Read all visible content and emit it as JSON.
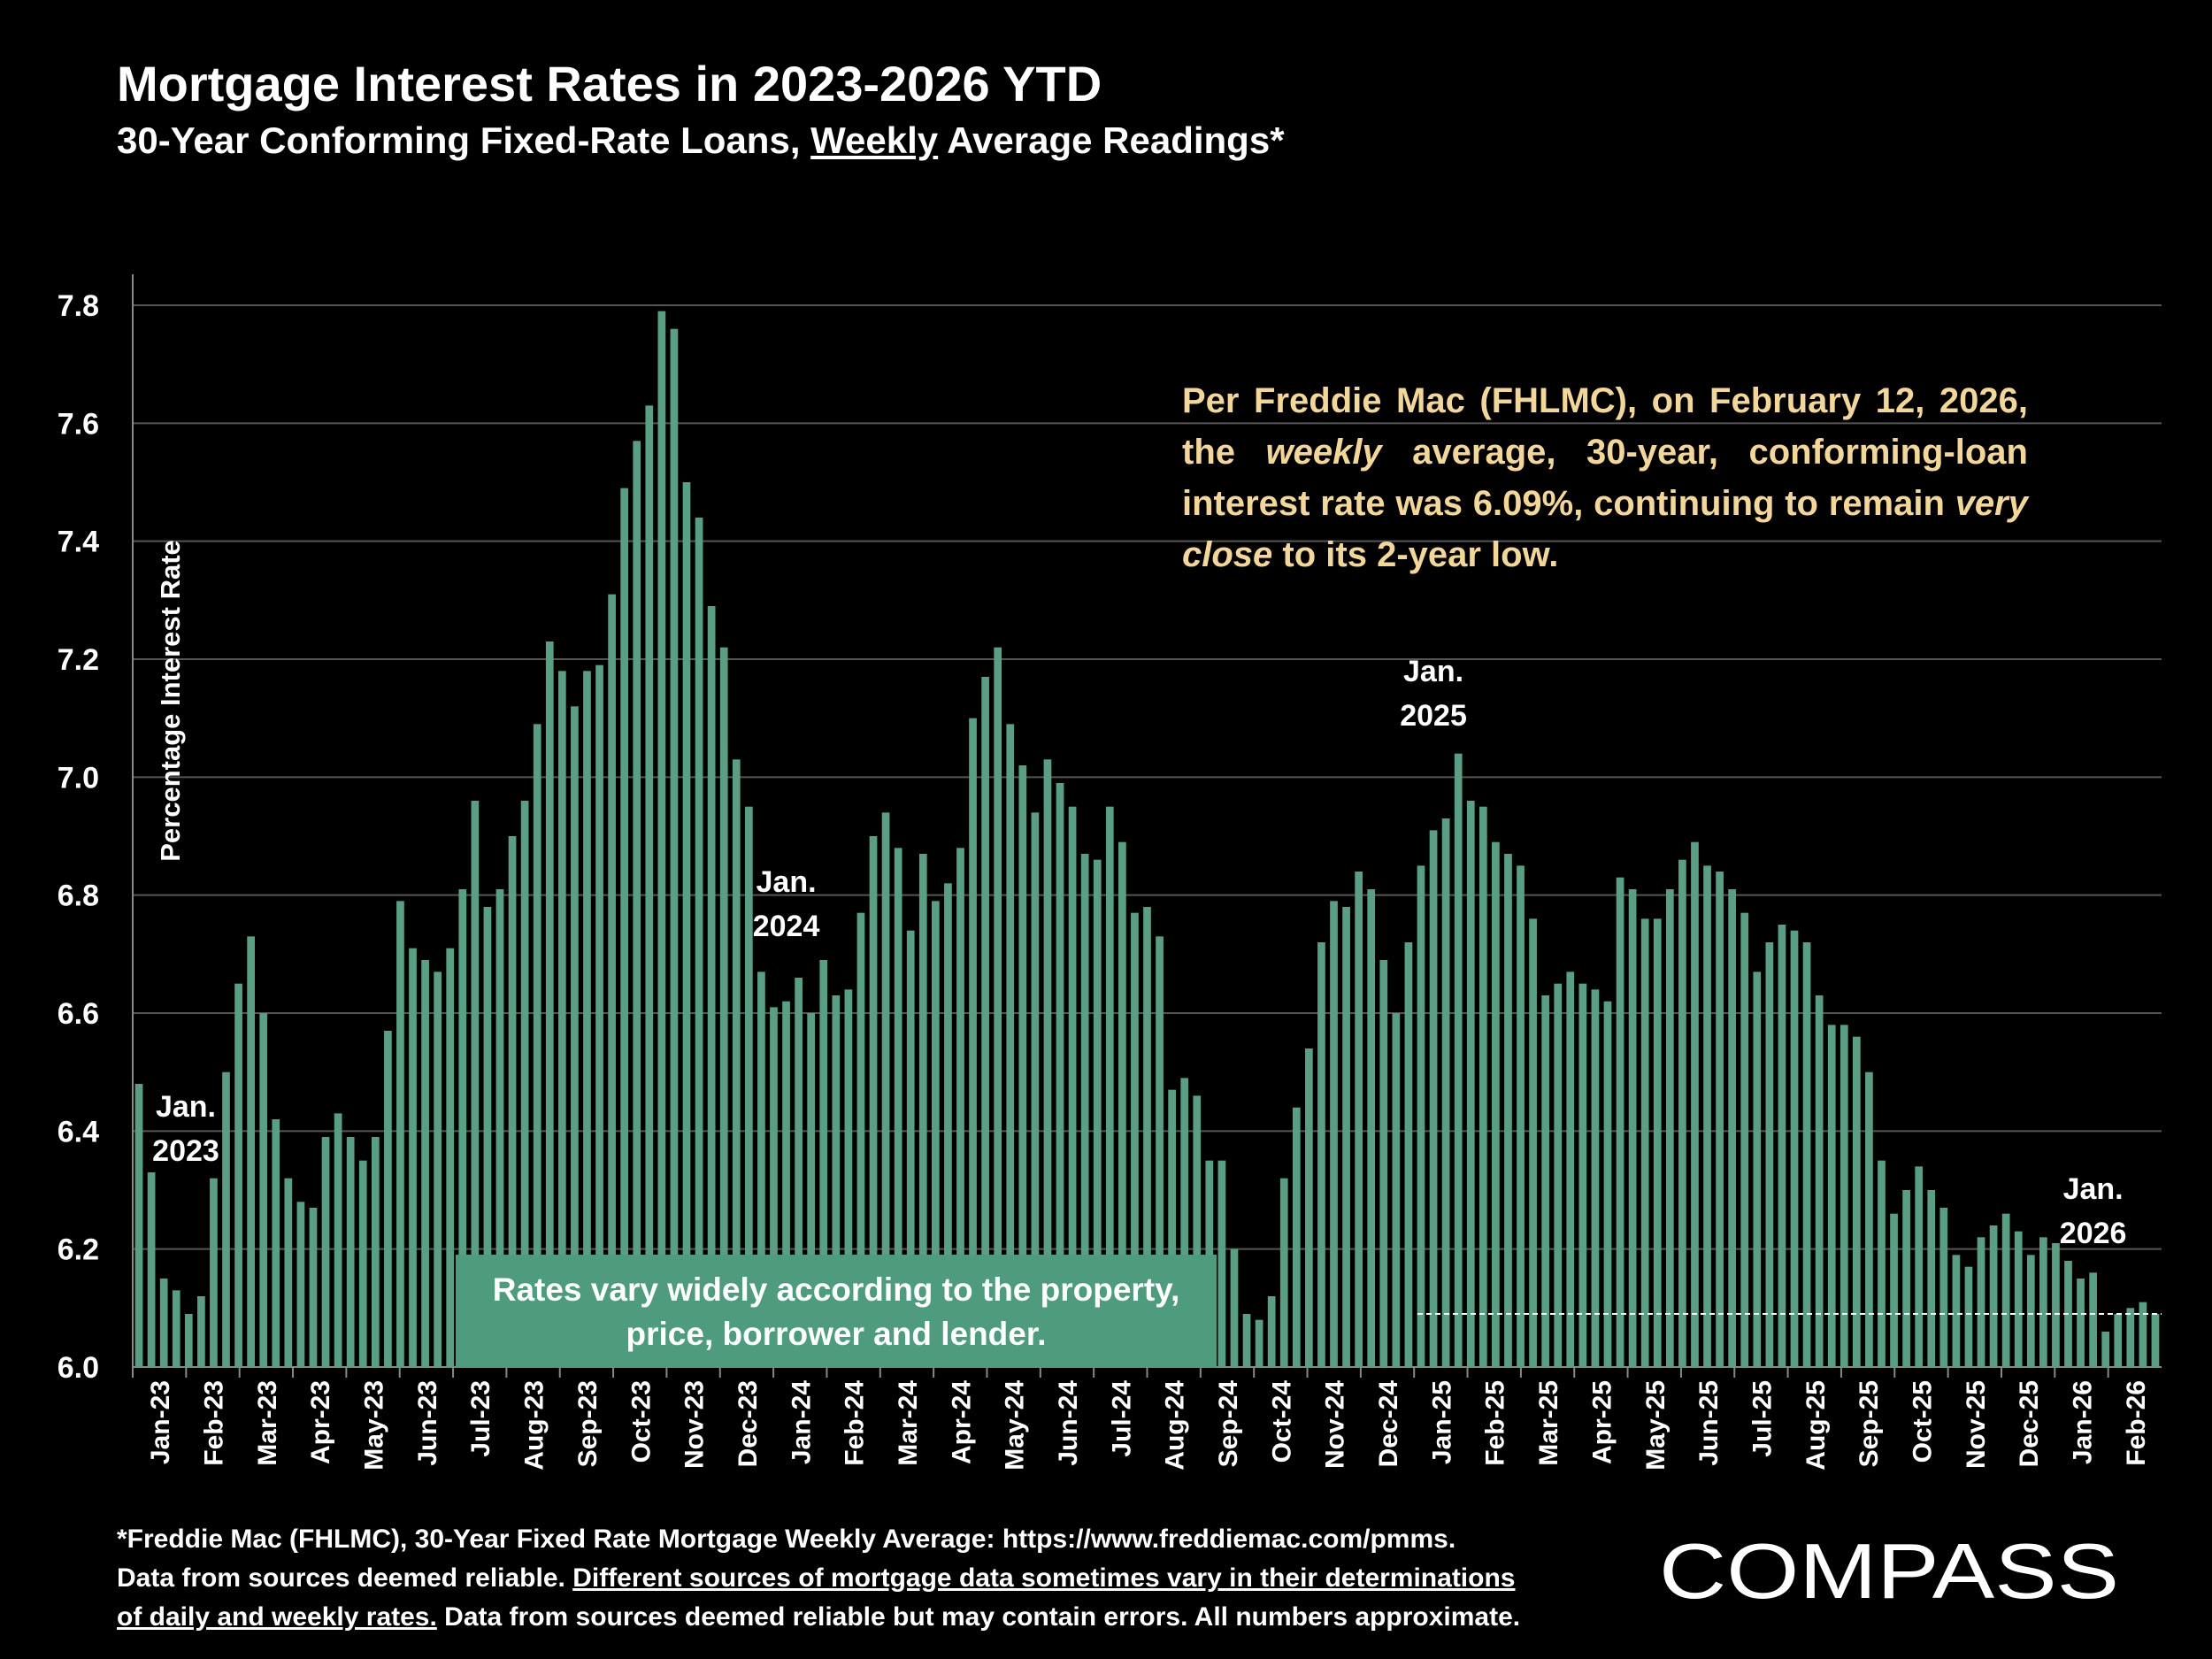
{
  "title": "Mortgage Interest Rates in 2023-2026 YTD",
  "subtitle": {
    "prefix": "30-Year Conforming Fixed-Rate Loans, ",
    "underlined": "Weekly",
    "suffix": " Average Readings*"
  },
  "callout": {
    "t1": "Per Freddie Mac (FHLMC), on February 12, 2026, the ",
    "em1": "weekly",
    "t2": " average, 30-year, conforming-loan interest rate was 6.09%, continuing to remain ",
    "em2": "very close",
    "t3": " to its 2-year low."
  },
  "note_box": {
    "line1": "Rates vary widely according to the property,",
    "line2": "price, borrower and lender."
  },
  "year_markers": [
    {
      "line1": "Jan.",
      "line2": "2023",
      "week": 3
    },
    {
      "line1": "Jan.",
      "line2": "2024",
      "week": 52
    },
    {
      "line1": "Jan.",
      "line2": "2025",
      "week": 104
    },
    {
      "line1": "Jan.",
      "line2": "2026",
      "week": 157
    }
  ],
  "footnote": {
    "line1": "*Freddie Mac (FHLMC), 30-Year Fixed Rate Mortgage Weekly Average:  https://www.freddiemac.com/pmms.",
    "l2a": "Data from sources deemed reliable. ",
    "l2b": "Different sources of mortgage data sometimes vary in their determinations",
    "l3a": "of daily and weekly rates.",
    "l3b": " Data from sources deemed reliable but may contain errors. All numbers approximate."
  },
  "logo": {
    "text": "COMPASS"
  },
  "colors": {
    "bar": "#5a9e83",
    "callout_text": "#f3d79a",
    "note_box": "#4f9b7e",
    "grid": "#555555",
    "background": "#000000"
  },
  "chart_data": {
    "type": "bar",
    "ylabel": "Percentage Interest  Rate",
    "ylim": [
      6.0,
      7.85
    ],
    "yticks": [
      "6.0",
      "6.2",
      "6.4",
      "6.6",
      "6.8",
      "7.0",
      "7.2",
      "7.4",
      "7.6",
      "7.8"
    ],
    "grid": true,
    "reference_line": {
      "value": 6.09,
      "style": "dashed",
      "color": "#ffffff"
    },
    "month_labels": [
      "Jan-23",
      "Feb-23",
      "Mar-23",
      "Apr-23",
      "May-23",
      "Jun-23",
      "Jul-23",
      "Aug-23",
      "Sep-23",
      "Oct-23",
      "Nov-23",
      "Dec-23",
      "Jan-24",
      "Feb-24",
      "Mar-24",
      "Apr-24",
      "May-24",
      "Jun-24",
      "Jul-24",
      "Aug-24",
      "Sep-24",
      "Oct-24",
      "Nov-24",
      "Dec-24",
      "Jan-25",
      "Feb-25",
      "Mar-25",
      "Apr-25",
      "May-25",
      "Jun-25",
      "Jul-25",
      "Aug-25",
      "Sep-25",
      "Oct-25",
      "Nov-25",
      "Dec-25",
      "Jan-26",
      "Feb-26"
    ],
    "values": [
      6.48,
      6.33,
      6.15,
      6.13,
      6.09,
      6.12,
      6.32,
      6.5,
      6.65,
      6.73,
      6.6,
      6.42,
      6.32,
      6.28,
      6.27,
      6.39,
      6.43,
      6.39,
      6.35,
      6.39,
      6.57,
      6.79,
      6.71,
      6.69,
      6.67,
      6.71,
      6.81,
      6.96,
      6.78,
      6.81,
      6.9,
      6.96,
      7.09,
      7.23,
      7.18,
      7.12,
      7.18,
      7.19,
      7.31,
      7.49,
      7.57,
      7.63,
      7.79,
      7.76,
      7.5,
      7.44,
      7.29,
      7.22,
      7.03,
      6.95,
      6.67,
      6.61,
      6.62,
      6.66,
      6.6,
      6.69,
      6.63,
      6.64,
      6.77,
      6.9,
      6.94,
      6.88,
      6.74,
      6.87,
      6.79,
      6.82,
      6.88,
      7.1,
      7.17,
      7.22,
      7.09,
      7.02,
      6.94,
      7.03,
      6.99,
      6.95,
      6.87,
      6.86,
      6.95,
      6.89,
      6.77,
      6.78,
      6.73,
      6.47,
      6.49,
      6.46,
      6.35,
      6.35,
      6.2,
      6.09,
      6.08,
      6.12,
      6.32,
      6.44,
      6.54,
      6.72,
      6.79,
      6.78,
      6.84,
      6.81,
      6.69,
      6.6,
      6.72,
      6.85,
      6.91,
      6.93,
      7.04,
      6.96,
      6.95,
      6.89,
      6.87,
      6.85,
      6.76,
      6.63,
      6.65,
      6.67,
      6.65,
      6.64,
      6.62,
      6.83,
      6.81,
      6.76,
      6.76,
      6.81,
      6.86,
      6.89,
      6.85,
      6.84,
      6.81,
      6.77,
      6.67,
      6.72,
      6.75,
      6.74,
      6.72,
      6.63,
      6.58,
      6.58,
      6.56,
      6.5,
      6.35,
      6.26,
      6.3,
      6.34,
      6.3,
      6.27,
      6.19,
      6.17,
      6.22,
      6.24,
      6.26,
      6.23,
      6.19,
      6.22,
      6.21,
      6.18,
      6.15,
      6.16,
      6.06,
      6.09,
      6.1,
      6.11,
      6.09
    ]
  }
}
